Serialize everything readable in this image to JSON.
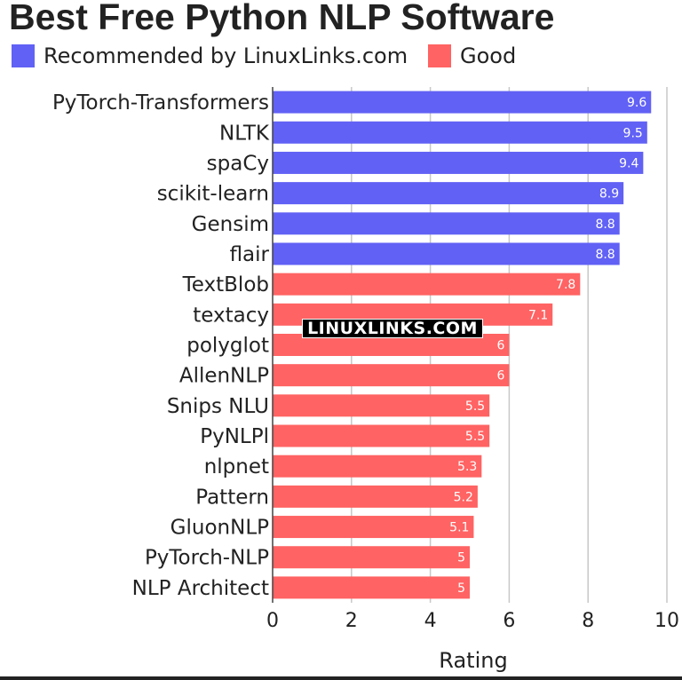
{
  "title": "Best Free Python NLP Software",
  "watermark": "LINUXLINKS.COM",
  "colors": {
    "recommended": "#6161F5",
    "good": "#FF6363",
    "grid": "#c8c8c8",
    "text": "#222222"
  },
  "legend": [
    {
      "label": "Recommended by LinuxLinks.com",
      "group": "recommended"
    },
    {
      "label": "Good",
      "group": "good"
    }
  ],
  "chart_data": {
    "type": "bar",
    "orientation": "horizontal",
    "xlabel": "Rating",
    "xlim": [
      0,
      10
    ],
    "xticks": [
      0,
      2,
      4,
      6,
      8,
      10
    ],
    "grid": true,
    "legend_position": "top",
    "categories": [
      "PyTorch-Transformers",
      "NLTK",
      "spaCy",
      "scikit-learn",
      "Gensim",
      "flair",
      "TextBlob",
      "textacy",
      "polyglot",
      "AllenNLP",
      "Snips NLU",
      "PyNLPl",
      "nlpnet",
      "Pattern",
      "GluonNLP",
      "PyTorch-NLP",
      "NLP Architect"
    ],
    "values": [
      9.6,
      9.5,
      9.4,
      8.9,
      8.8,
      8.8,
      7.8,
      7.1,
      6,
      6,
      5.5,
      5.5,
      5.3,
      5.2,
      5.1,
      5,
      5
    ],
    "groups": [
      "recommended",
      "recommended",
      "recommended",
      "recommended",
      "recommended",
      "recommended",
      "good",
      "good",
      "good",
      "good",
      "good",
      "good",
      "good",
      "good",
      "good",
      "good",
      "good"
    ]
  }
}
